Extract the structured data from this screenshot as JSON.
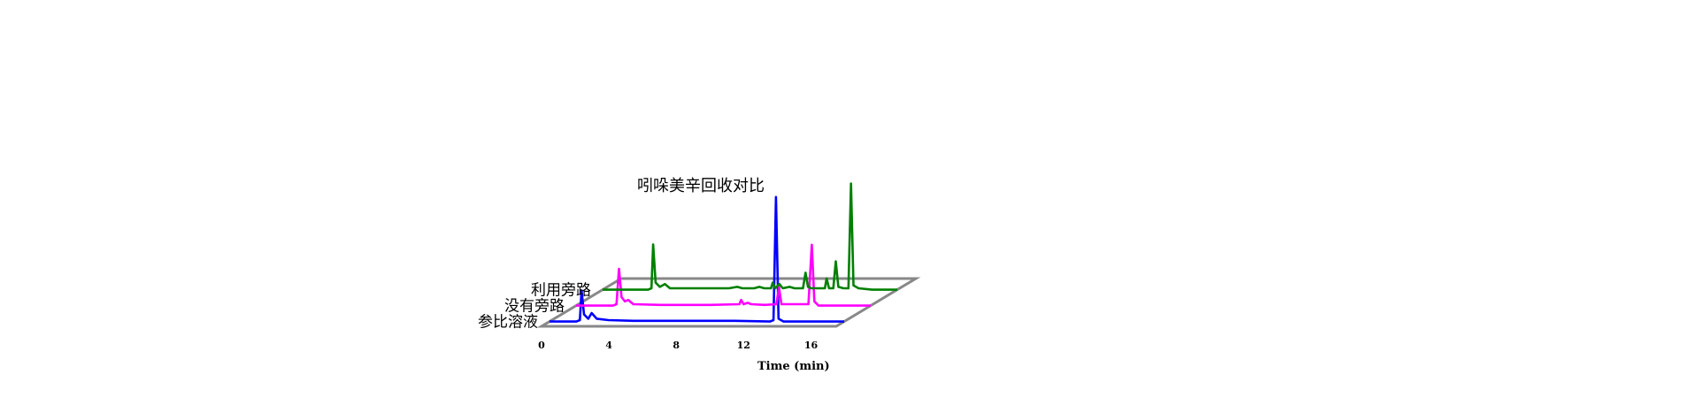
{
  "chart_data": {
    "type": "line",
    "title": "吲哚美辛回收对比",
    "xlabel": "Time (min)",
    "ylabel": "",
    "xlim": [
      0,
      17.5
    ],
    "x_ticks": [
      0,
      4,
      8,
      12,
      16
    ],
    "x_tick_labels": [
      "0",
      "4",
      "8",
      "12",
      "16"
    ],
    "grid": false,
    "style": "3d-stacked-offset",
    "series": [
      {
        "name": "参比溶液",
        "color": "#0000ff",
        "points": [
          [
            0,
            0
          ],
          [
            1.6,
            0
          ],
          [
            1.8,
            1
          ],
          [
            1.9,
            22
          ],
          [
            2.05,
            5
          ],
          [
            2.3,
            2
          ],
          [
            2.5,
            6
          ],
          [
            2.8,
            2
          ],
          [
            3.5,
            1
          ],
          [
            5,
            0.5
          ],
          [
            8,
            0.5
          ],
          [
            11,
            0.5
          ],
          [
            13.1,
            0
          ],
          [
            13.3,
            1
          ],
          [
            13.45,
            88
          ],
          [
            13.6,
            2
          ],
          [
            13.9,
            0
          ],
          [
            16,
            0
          ],
          [
            17.5,
            0
          ]
        ]
      },
      {
        "name": "没有旁路",
        "color": "#ff00ff",
        "points": [
          [
            0,
            0
          ],
          [
            2.2,
            0
          ],
          [
            2.4,
            1
          ],
          [
            2.55,
            26
          ],
          [
            2.7,
            6
          ],
          [
            2.9,
            3
          ],
          [
            3.1,
            4
          ],
          [
            3.4,
            1
          ],
          [
            5,
            0.5
          ],
          [
            8,
            0.5
          ],
          [
            9.7,
            1
          ],
          [
            9.8,
            4
          ],
          [
            9.95,
            1
          ],
          [
            10.2,
            2
          ],
          [
            10.4,
            1
          ],
          [
            11.2,
            0.5
          ],
          [
            11.9,
            1
          ],
          [
            12.05,
            13
          ],
          [
            12.2,
            1
          ],
          [
            13,
            1
          ],
          [
            13.6,
            1
          ],
          [
            13.8,
            1
          ],
          [
            14.0,
            43
          ],
          [
            14.15,
            3
          ],
          [
            14.4,
            0
          ],
          [
            16,
            0
          ],
          [
            17.5,
            0
          ]
        ]
      },
      {
        "name": "利用旁路",
        "color": "#008000",
        "points": [
          [
            0,
            0
          ],
          [
            2.7,
            0
          ],
          [
            2.9,
            1
          ],
          [
            3.0,
            32
          ],
          [
            3.15,
            5
          ],
          [
            3.4,
            2
          ],
          [
            3.7,
            4
          ],
          [
            4.0,
            1
          ],
          [
            5,
            1
          ],
          [
            6.5,
            1
          ],
          [
            7.5,
            1
          ],
          [
            8,
            2
          ],
          [
            8.3,
            1
          ],
          [
            9,
            1
          ],
          [
            9.3,
            2
          ],
          [
            9.6,
            1
          ],
          [
            10.0,
            1
          ],
          [
            10.1,
            5
          ],
          [
            10.25,
            1
          ],
          [
            10.5,
            4
          ],
          [
            10.7,
            1
          ],
          [
            11.1,
            2
          ],
          [
            11.4,
            1
          ],
          [
            11.9,
            1
          ],
          [
            12.05,
            12
          ],
          [
            12.2,
            2
          ],
          [
            12.4,
            1
          ],
          [
            13,
            1
          ],
          [
            13.2,
            1
          ],
          [
            13.3,
            8
          ],
          [
            13.45,
            1
          ],
          [
            13.7,
            1
          ],
          [
            13.85,
            20
          ],
          [
            14.0,
            2
          ],
          [
            14.3,
            1
          ],
          [
            14.6,
            1
          ],
          [
            14.75,
            75
          ],
          [
            14.9,
            3
          ],
          [
            15.2,
            1
          ],
          [
            16,
            0
          ],
          [
            17.5,
            0
          ]
        ]
      }
    ]
  }
}
